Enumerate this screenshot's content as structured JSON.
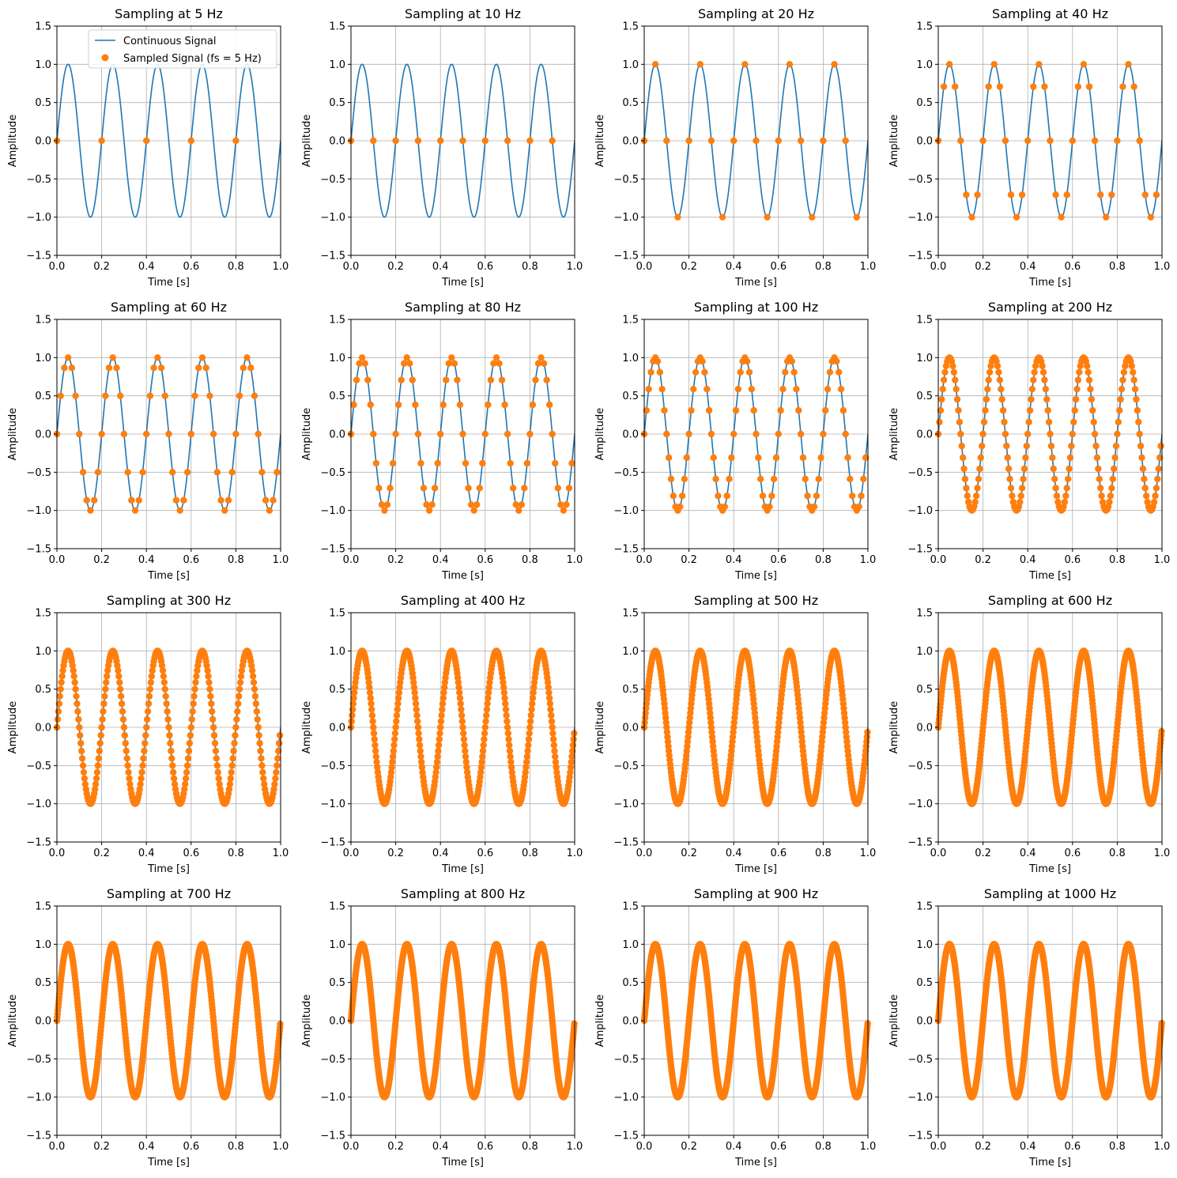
{
  "figure": {
    "xlabel": "Time [s]",
    "ylabel": "Amplitude",
    "xlim": [
      0,
      1
    ],
    "ylim": [
      -1.5,
      1.5
    ],
    "xticks": [
      "0.0",
      "0.2",
      "0.4",
      "0.6",
      "0.8",
      "1.0"
    ],
    "yticks": [
      "−1.5",
      "−1.0",
      "−0.5",
      "0.0",
      "0.5",
      "1.0",
      "1.5"
    ],
    "grid": true,
    "colors": {
      "continuous": "#1f77b4",
      "sampled": "#ff7f0e",
      "grid": "#b0b0b0"
    }
  },
  "legend": {
    "location": "top-right of first panel",
    "entries": [
      "Continuous Signal",
      "Sampled Signal (fs = 5 Hz)"
    ]
  },
  "panels": [
    {
      "title": "Sampling at 5 Hz"
    },
    {
      "title": "Sampling at 10 Hz"
    },
    {
      "title": "Sampling at 20 Hz"
    },
    {
      "title": "Sampling at 40 Hz"
    },
    {
      "title": "Sampling at 60 Hz"
    },
    {
      "title": "Sampling at 80 Hz"
    },
    {
      "title": "Sampling at 100 Hz"
    },
    {
      "title": "Sampling at 200 Hz"
    },
    {
      "title": "Sampling at 300 Hz"
    },
    {
      "title": "Sampling at 400 Hz"
    },
    {
      "title": "Sampling at 500 Hz"
    },
    {
      "title": "Sampling at 600 Hz"
    },
    {
      "title": "Sampling at 700 Hz"
    },
    {
      "title": "Sampling at 800 Hz"
    },
    {
      "title": "Sampling at 900 Hz"
    },
    {
      "title": "Sampling at 1000 Hz"
    }
  ],
  "chart_data": {
    "type": "line",
    "signal": {
      "function": "sin",
      "frequency_hz": 5,
      "amplitude": 1,
      "t_range": [
        0,
        1
      ]
    },
    "sampling_rates_hz": [
      5,
      10,
      20,
      40,
      60,
      80,
      100,
      200,
      300,
      400,
      500,
      600,
      700,
      800,
      900,
      1000
    ],
    "series": [
      {
        "name": "Continuous Signal",
        "style": "line"
      },
      {
        "name": "Sampled Signal (fs = 5 Hz)",
        "style": "markers"
      }
    ],
    "xlabel": "Time [s]",
    "ylabel": "Amplitude",
    "xlim": [
      0,
      1
    ],
    "ylim": [
      -1.5,
      1.5
    ],
    "grid": true
  }
}
